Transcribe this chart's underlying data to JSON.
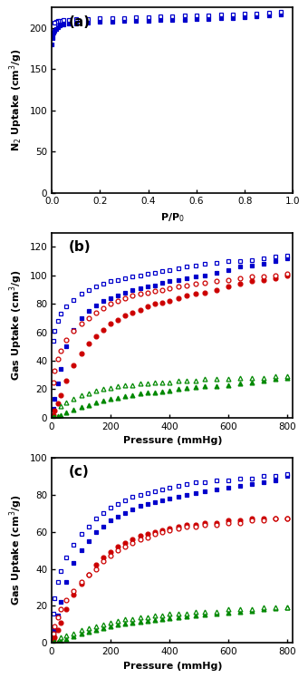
{
  "panel_a": {
    "label": "(a)",
    "ylabel": "N$_2$ Uptake (cm$^3$/g)",
    "xlabel": "P/P$_0$",
    "xlim": [
      0,
      1.0
    ],
    "ylim": [
      0,
      225
    ],
    "yticks": [
      0,
      50,
      100,
      150,
      200
    ],
    "xticks": [
      0.0,
      0.2,
      0.4,
      0.6,
      0.8,
      1.0
    ],
    "color": "#0000cc",
    "ads_x": [
      0.001,
      0.003,
      0.005,
      0.008,
      0.012,
      0.018,
      0.025,
      0.035,
      0.05,
      0.07,
      0.1,
      0.15,
      0.2,
      0.25,
      0.3,
      0.35,
      0.4,
      0.45,
      0.5,
      0.55,
      0.6,
      0.65,
      0.7,
      0.75,
      0.8,
      0.85,
      0.9,
      0.95
    ],
    "ads_y": [
      180,
      188,
      192,
      195,
      197,
      199,
      201,
      203,
      204,
      205,
      206,
      207,
      208,
      208,
      209,
      209,
      209,
      210,
      210,
      210,
      211,
      211,
      212,
      212,
      213,
      214,
      215,
      217
    ],
    "des_x": [
      0.95,
      0.9,
      0.85,
      0.8,
      0.75,
      0.7,
      0.65,
      0.6,
      0.55,
      0.5,
      0.45,
      0.4,
      0.35,
      0.3,
      0.25,
      0.2,
      0.15,
      0.1,
      0.07,
      0.05,
      0.035,
      0.025,
      0.018,
      0.012
    ],
    "des_y": [
      220,
      219,
      218,
      218,
      217,
      217,
      216,
      215,
      215,
      214,
      214,
      213,
      213,
      212,
      212,
      212,
      211,
      211,
      210,
      210,
      209,
      209,
      208,
      207
    ]
  },
  "panel_b": {
    "label": "(b)",
    "ylabel": "Gas Uptake (cm$^3$/g)",
    "xlabel": "Pressure (mmHg)",
    "xlim": [
      0,
      820
    ],
    "ylim": [
      0,
      130
    ],
    "yticks": [
      0,
      20,
      40,
      60,
      80,
      100,
      120
    ],
    "xticks": [
      0,
      200,
      400,
      600,
      800
    ],
    "blue": "#0000cc",
    "red": "#cc0000",
    "green": "#008800",
    "c2h2_ads_x": [
      0,
      5,
      10,
      20,
      30,
      50,
      75,
      100,
      125,
      150,
      175,
      200,
      225,
      250,
      275,
      300,
      325,
      350,
      375,
      400,
      430,
      460,
      490,
      520,
      560,
      600,
      640,
      680,
      720,
      760,
      800
    ],
    "c2h2_ads_y": [
      0,
      6,
      13,
      24,
      34,
      50,
      62,
      70,
      75,
      79,
      82,
      84,
      86,
      88,
      90,
      91,
      92,
      93,
      95,
      96,
      97,
      98,
      99,
      100,
      102,
      104,
      106,
      107,
      108,
      110,
      112
    ],
    "c2h2_des_x": [
      800,
      760,
      720,
      680,
      640,
      600,
      560,
      520,
      490,
      460,
      430,
      400,
      375,
      350,
      325,
      300,
      275,
      250,
      225,
      200,
      175,
      150,
      125,
      100,
      75,
      50,
      30,
      20,
      10,
      5
    ],
    "c2h2_des_y": [
      114,
      113,
      112,
      111,
      110,
      110,
      109,
      108,
      107,
      106,
      105,
      104,
      103,
      102,
      101,
      100,
      99,
      98,
      97,
      96,
      94,
      92,
      90,
      87,
      83,
      78,
      73,
      68,
      61,
      54
    ],
    "co2_ads_x": [
      0,
      5,
      10,
      20,
      30,
      50,
      75,
      100,
      125,
      150,
      175,
      200,
      225,
      250,
      275,
      300,
      325,
      350,
      375,
      400,
      430,
      460,
      490,
      520,
      560,
      600,
      640,
      680,
      720,
      760,
      800
    ],
    "co2_ads_y": [
      0,
      2,
      5,
      10,
      16,
      26,
      37,
      45,
      52,
      57,
      62,
      66,
      69,
      72,
      74,
      76,
      78,
      80,
      81,
      82,
      84,
      86,
      87,
      88,
      90,
      92,
      94,
      96,
      97,
      98,
      100
    ],
    "co2_des_x": [
      800,
      760,
      720,
      680,
      640,
      600,
      560,
      520,
      490,
      460,
      430,
      400,
      375,
      350,
      325,
      300,
      275,
      250,
      225,
      200,
      175,
      150,
      125,
      100,
      75,
      50,
      30,
      20,
      10,
      5
    ],
    "co2_des_y": [
      101,
      100,
      99,
      99,
      98,
      97,
      96,
      95,
      94,
      93,
      92,
      91,
      90,
      89,
      88,
      87,
      86,
      84,
      82,
      80,
      77,
      74,
      70,
      66,
      61,
      55,
      47,
      41,
      33,
      25
    ],
    "ch4_ads_x": [
      0,
      5,
      10,
      20,
      30,
      50,
      75,
      100,
      125,
      150,
      175,
      200,
      225,
      250,
      275,
      300,
      325,
      350,
      375,
      400,
      430,
      460,
      490,
      520,
      560,
      600,
      640,
      680,
      720,
      760,
      800
    ],
    "ch4_ads_y": [
      0,
      0.3,
      0.6,
      1.2,
      2,
      3.5,
      5.5,
      7.5,
      9,
      10.5,
      12,
      13,
      14,
      15,
      16,
      17,
      17.5,
      18,
      18.5,
      19,
      20,
      21,
      21.5,
      22,
      22.5,
      23,
      24,
      25,
      26,
      27,
      28
    ],
    "ch4_des_x": [
      800,
      760,
      720,
      680,
      640,
      600,
      560,
      520,
      490,
      460,
      430,
      400,
      375,
      350,
      325,
      300,
      275,
      250,
      225,
      200,
      175,
      150,
      125,
      100,
      75,
      50,
      30
    ],
    "ch4_des_y": [
      29,
      29,
      28,
      28,
      28,
      27,
      27,
      27,
      26,
      26,
      26,
      25,
      25,
      25,
      24,
      24,
      23,
      23,
      22,
      21,
      20,
      19,
      17,
      16,
      13,
      11,
      8
    ]
  },
  "panel_c": {
    "label": "(c)",
    "ylabel": "Gas Uptake (cm$^3$/g)",
    "xlabel": "Pressure (mmHg)",
    "xlim": [
      0,
      820
    ],
    "ylim": [
      0,
      100
    ],
    "yticks": [
      0,
      20,
      40,
      60,
      80,
      100
    ],
    "xticks": [
      0,
      200,
      400,
      600,
      800
    ],
    "blue": "#0000cc",
    "red": "#cc0000",
    "green": "#008800",
    "c2h2_ads_x": [
      0,
      5,
      10,
      20,
      30,
      50,
      75,
      100,
      125,
      150,
      175,
      200,
      225,
      250,
      275,
      300,
      325,
      350,
      375,
      400,
      430,
      460,
      490,
      520,
      560,
      600,
      640,
      680,
      720,
      760,
      800
    ],
    "c2h2_ads_y": [
      0,
      3,
      7,
      15,
      22,
      33,
      43,
      50,
      55,
      60,
      63,
      66,
      68,
      70,
      72,
      74,
      75,
      76,
      77,
      78,
      79,
      80,
      81,
      82,
      83,
      84,
      85,
      86,
      87,
      88,
      90
    ],
    "c2h2_des_x": [
      800,
      760,
      720,
      680,
      640,
      600,
      560,
      520,
      490,
      460,
      430,
      400,
      375,
      350,
      325,
      300,
      275,
      250,
      225,
      200,
      175,
      150,
      125,
      100,
      75,
      50,
      30,
      20,
      10,
      5
    ],
    "c2h2_des_y": [
      91,
      90,
      90,
      89,
      89,
      88,
      88,
      87,
      87,
      86,
      85,
      84,
      83,
      82,
      81,
      80,
      79,
      77,
      75,
      73,
      70,
      67,
      63,
      59,
      53,
      46,
      39,
      33,
      24,
      16
    ],
    "co2_ads_x": [
      0,
      5,
      10,
      20,
      30,
      50,
      75,
      100,
      125,
      150,
      175,
      200,
      225,
      250,
      275,
      300,
      325,
      350,
      375,
      400,
      430,
      460,
      490,
      520,
      560,
      600,
      640,
      680,
      720,
      760,
      800
    ],
    "co2_ads_y": [
      0,
      1.5,
      3,
      7,
      11,
      18,
      26,
      32,
      37,
      42,
      46,
      49,
      52,
      54,
      56,
      58,
      59,
      60,
      61,
      62,
      63,
      64,
      64,
      65,
      65,
      66,
      66,
      67,
      67,
      67,
      67
    ],
    "co2_des_x": [
      800,
      760,
      720,
      680,
      640,
      600,
      560,
      520,
      490,
      460,
      430,
      400,
      375,
      350,
      325,
      300,
      275,
      250,
      225,
      200,
      175,
      150,
      125,
      100,
      75,
      50,
      30,
      20,
      10,
      5
    ],
    "co2_des_y": [
      67,
      67,
      66,
      66,
      65,
      65,
      64,
      64,
      63,
      63,
      62,
      61,
      60,
      59,
      57,
      56,
      54,
      52,
      50,
      47,
      44,
      40,
      37,
      33,
      28,
      23,
      18,
      14,
      9,
      5
    ],
    "ch4_ads_x": [
      0,
      5,
      10,
      20,
      30,
      50,
      75,
      100,
      125,
      150,
      175,
      200,
      225,
      250,
      275,
      300,
      325,
      350,
      375,
      400,
      430,
      460,
      490,
      520,
      560,
      600,
      640,
      680,
      720,
      760,
      800
    ],
    "ch4_ads_y": [
      0,
      0.2,
      0.4,
      0.8,
      1.3,
      2.2,
      3.5,
      5,
      6,
      7,
      8,
      9,
      10,
      10.5,
      11,
      11.5,
      12,
      12.5,
      13,
      13.5,
      14,
      14.5,
      15,
      15.5,
      16,
      16.5,
      17,
      17.5,
      18,
      18.5,
      19
    ],
    "ch4_des_x": [
      800,
      760,
      720,
      680,
      640,
      600,
      560,
      520,
      490,
      460,
      430,
      400,
      375,
      350,
      325,
      300,
      275,
      250,
      225,
      200,
      175,
      150,
      125,
      100,
      75,
      50,
      30
    ],
    "ch4_des_y": [
      19,
      19,
      19,
      18,
      18,
      18,
      17,
      17,
      17,
      16,
      16,
      16,
      15,
      15,
      14,
      14,
      13,
      13,
      12,
      11,
      10,
      9,
      8,
      7,
      5,
      4,
      3
    ]
  }
}
